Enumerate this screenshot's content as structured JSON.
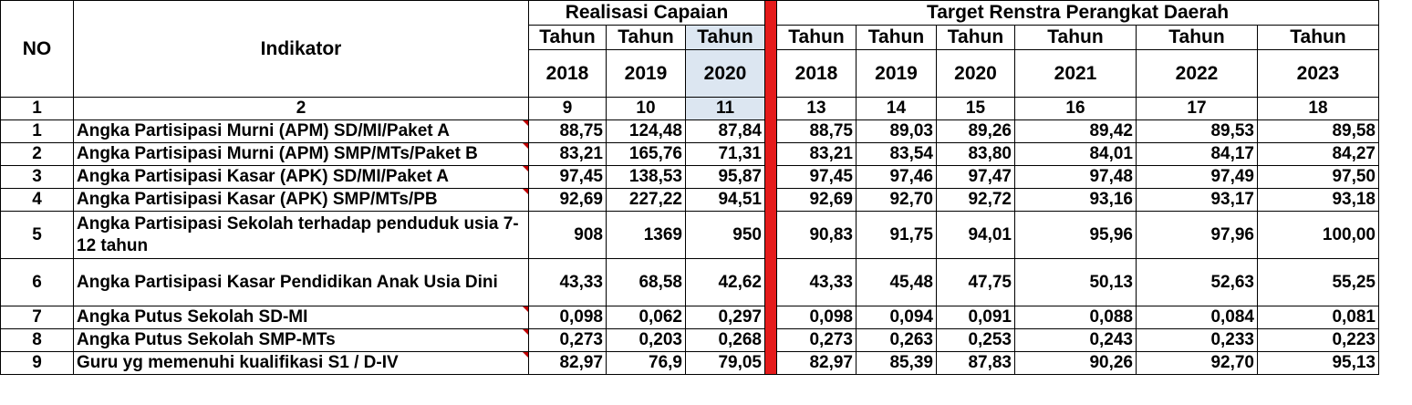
{
  "header": {
    "no": "NO",
    "indikator": "Indikator",
    "realisasi": "Realisasi Capaian",
    "target": "Target Renstra Perangkat Daerah",
    "tahun_label": "Tahun",
    "years_realisasi": [
      "2018",
      "2019",
      "2020"
    ],
    "years_target": [
      "2018",
      "2019",
      "2020",
      "2021",
      "2022",
      "2023"
    ],
    "col_numbers": [
      "1",
      "2",
      "9",
      "10",
      "11",
      "13",
      "14",
      "15",
      "16",
      "17",
      "18"
    ]
  },
  "rows": [
    {
      "no": "1",
      "indikator": "Angka Partisipasi Murni (APM) SD/MI/Paket A",
      "values": [
        "88,75",
        "124,48",
        "87,84",
        "88,75",
        "89,03",
        "89,26",
        "89,42",
        "89,53",
        "89,58"
      ]
    },
    {
      "no": "2",
      "indikator": "Angka Partisipasi Murni (APM) SMP/MTs/Paket B",
      "values": [
        "83,21",
        "165,76",
        "71,31",
        "83,21",
        "83,54",
        "83,80",
        "84,01",
        "84,17",
        "84,27"
      ]
    },
    {
      "no": "3",
      "indikator": "Angka Partisipasi Kasar (APK) SD/MI/Paket A",
      "values": [
        "97,45",
        "138,53",
        "95,87",
        "97,45",
        "97,46",
        "97,47",
        "97,48",
        "97,49",
        "97,50"
      ]
    },
    {
      "no": "4",
      "indikator": "Angka Partisipasi Kasar (APK) SMP/MTs/PB",
      "values": [
        "92,69",
        "227,22",
        "94,51",
        "92,69",
        "92,70",
        "92,72",
        "93,16",
        "93,17",
        "93,18"
      ]
    },
    {
      "no": "5",
      "indikator": "Angka Partisipasi Sekolah terhadap penduduk usia 7-12 tahun",
      "values": [
        "908",
        "1369",
        "950",
        "90,83",
        "91,75",
        "94,01",
        "95,96",
        "97,96",
        "100,00"
      ]
    },
    {
      "no": "6",
      "indikator": "Angka Partisipasi Kasar Pendidikan Anak Usia Dini",
      "values": [
        "43,33",
        "68,58",
        "42,62",
        "43,33",
        "45,48",
        "47,75",
        "50,13",
        "52,63",
        "55,25"
      ]
    },
    {
      "no": "7",
      "indikator": "Angka Putus Sekolah SD-MI",
      "values": [
        "0,098",
        "0,062",
        "0,297",
        "0,098",
        "0,094",
        "0,091",
        "0,088",
        "0,084",
        "0,081"
      ]
    },
    {
      "no": "8",
      "indikator": "Angka Putus Sekolah SMP-MTs",
      "values": [
        "0,273",
        "0,203",
        "0,268",
        "0,273",
        "0,263",
        "0,253",
        "0,243",
        "0,233",
        "0,223"
      ]
    },
    {
      "no": "9",
      "indikator": "Guru yg memenuhi kualifikasi S1 / D-IV",
      "values": [
        "82,97",
        "76,9",
        "79,05",
        "82,97",
        "85,39",
        "87,83",
        "90,26",
        "92,70",
        "95,13"
      ]
    }
  ]
}
